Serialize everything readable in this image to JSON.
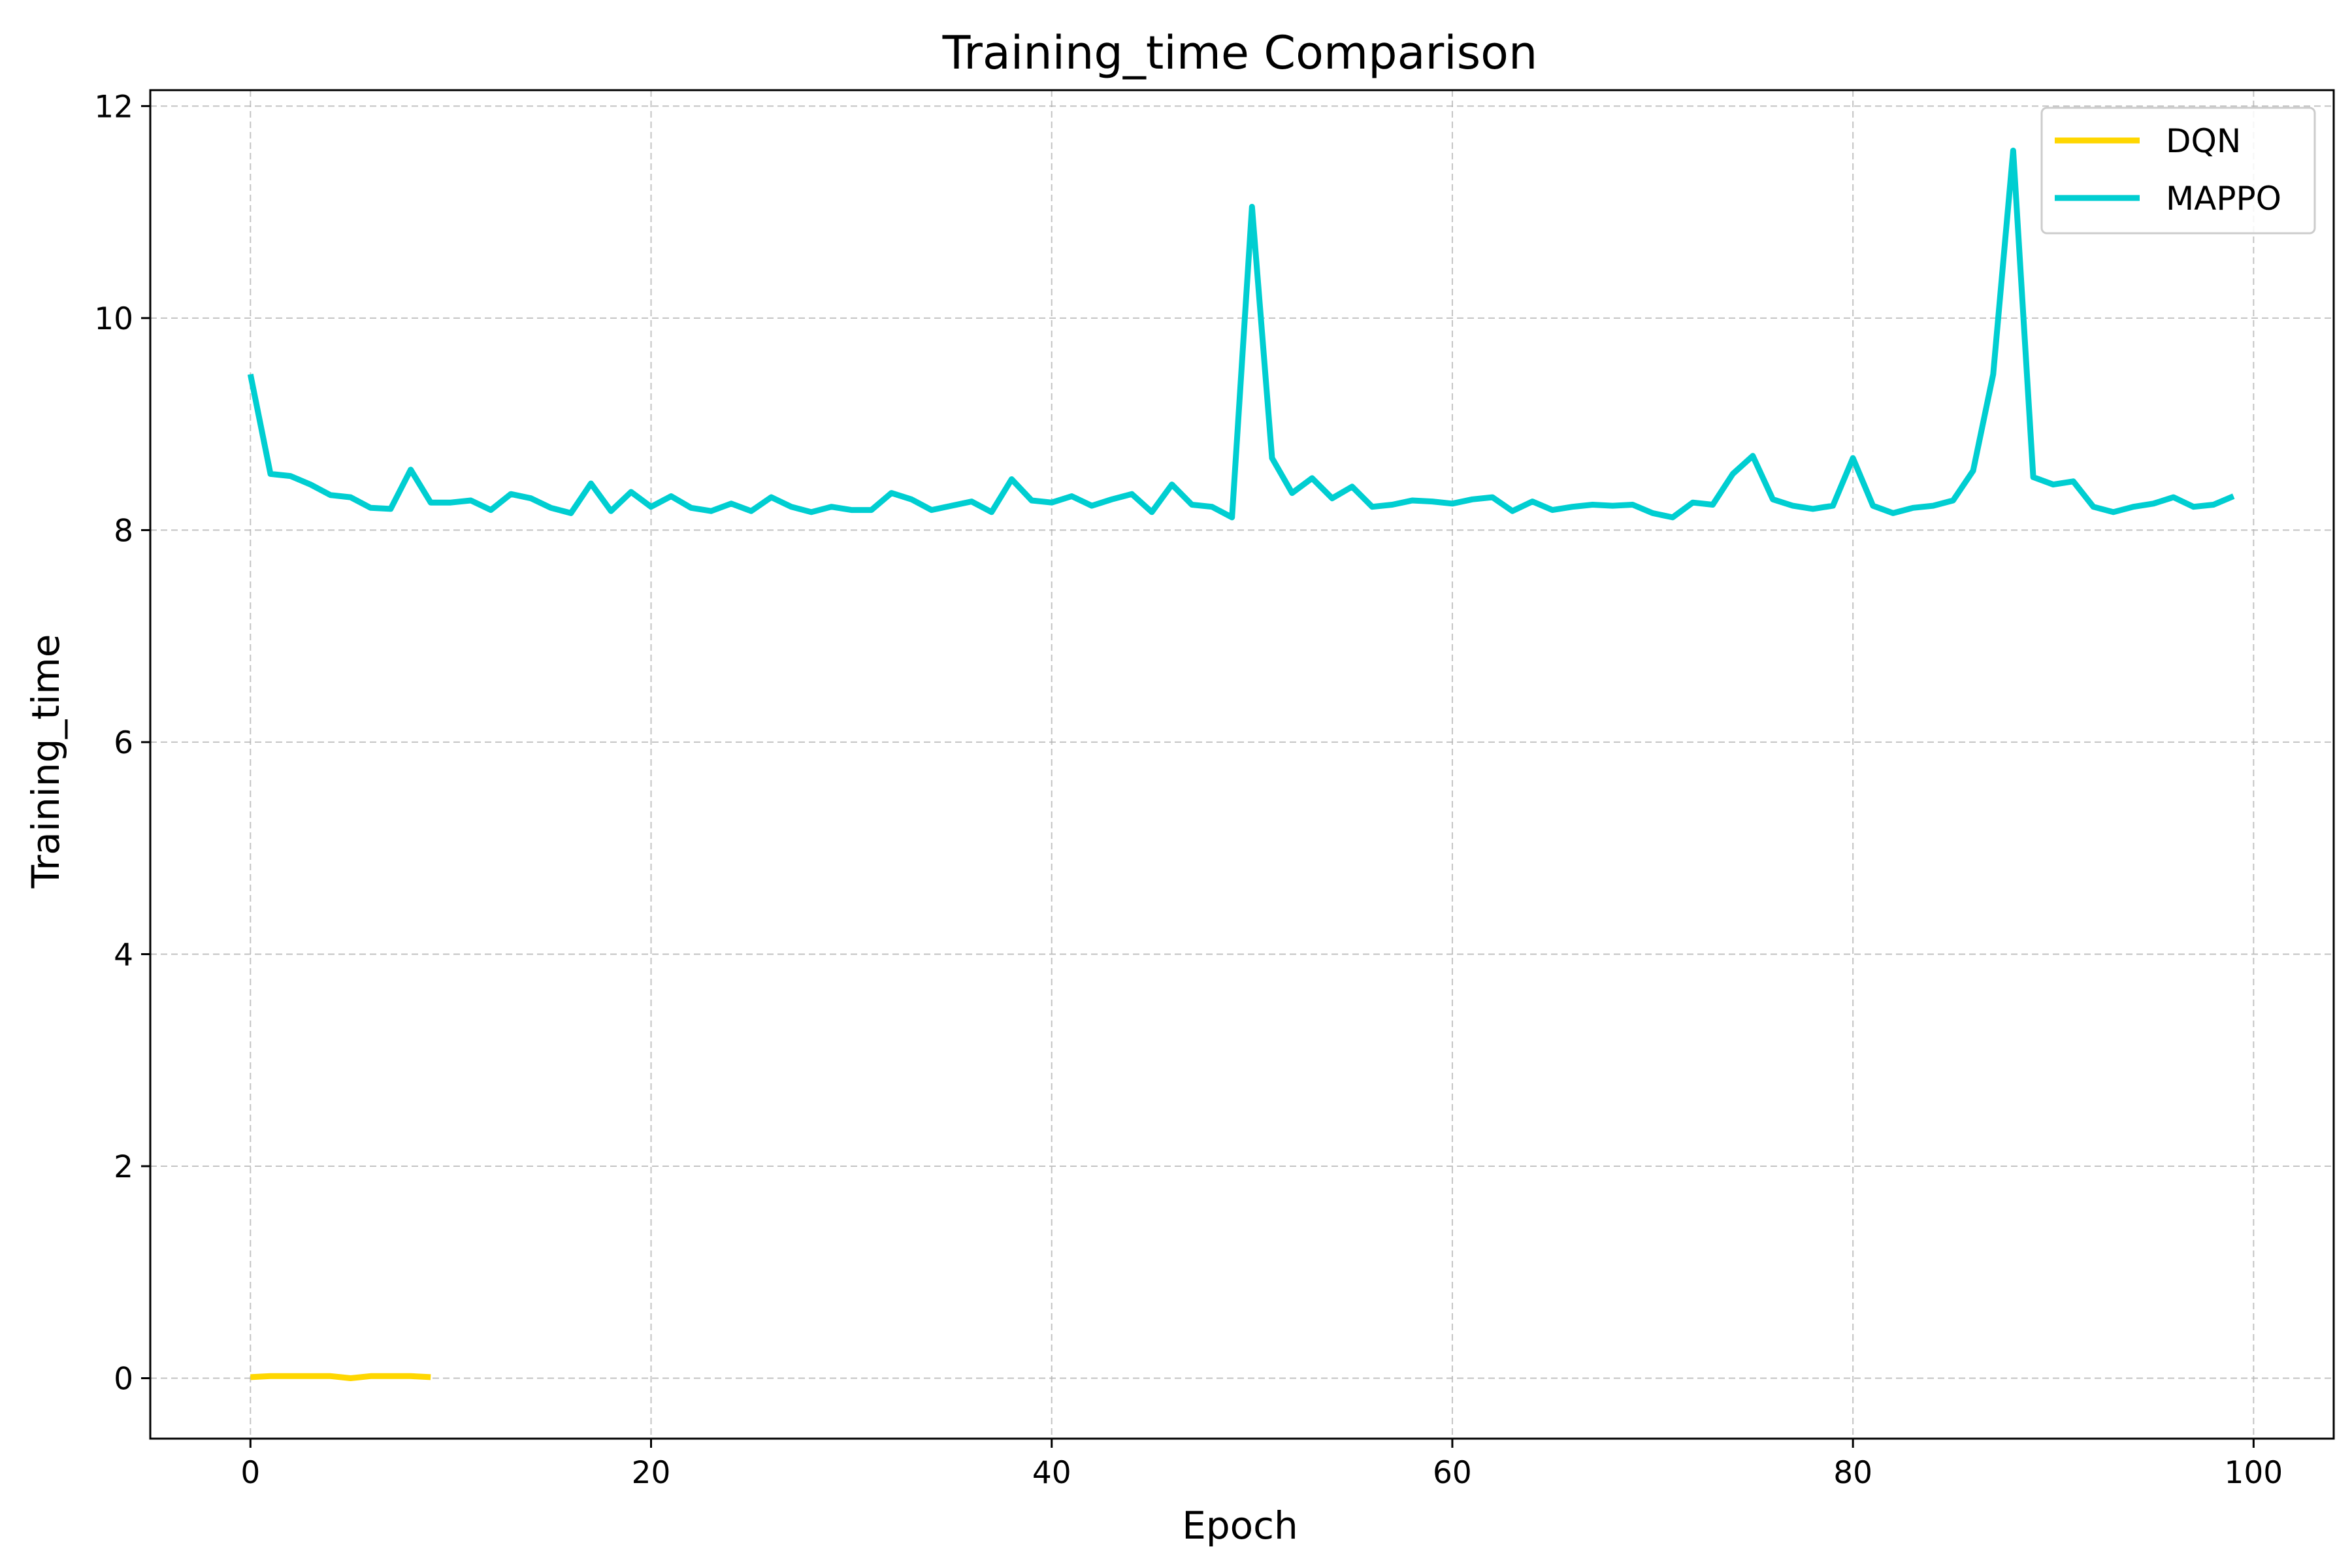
{
  "chart_data": {
    "type": "line",
    "title": "Training_time Comparison",
    "xlabel": "Epoch",
    "ylabel": "Training_time",
    "xlim": [
      -5,
      104
    ],
    "ylim": [
      -0.57,
      12.15
    ],
    "x_ticks": [
      0,
      20,
      40,
      60,
      80,
      100
    ],
    "y_ticks": [
      0,
      2,
      4,
      6,
      8,
      10,
      12
    ],
    "grid": true,
    "legend_position": "top-right",
    "series": [
      {
        "name": "DQN",
        "color": "#FFD700",
        "x": [
          0,
          1,
          2,
          3,
          4,
          5,
          6,
          7,
          8,
          9
        ],
        "values": [
          0.01,
          0.02,
          0.02,
          0.02,
          0.02,
          0.0,
          0.02,
          0.02,
          0.02,
          0.01
        ]
      },
      {
        "name": "MAPPO",
        "color": "#00CED1",
        "x": [
          0,
          1,
          2,
          3,
          4,
          5,
          6,
          7,
          8,
          9,
          10,
          11,
          12,
          13,
          14,
          15,
          16,
          17,
          18,
          19,
          20,
          21,
          22,
          23,
          24,
          25,
          26,
          27,
          28,
          29,
          30,
          31,
          32,
          33,
          34,
          35,
          36,
          37,
          38,
          39,
          40,
          41,
          42,
          43,
          44,
          45,
          46,
          47,
          48,
          49,
          50,
          51,
          52,
          53,
          54,
          55,
          56,
          57,
          58,
          59,
          60,
          61,
          62,
          63,
          64,
          65,
          66,
          67,
          68,
          69,
          70,
          71,
          72,
          73,
          74,
          75,
          76,
          77,
          78,
          79,
          80,
          81,
          82,
          83,
          84,
          85,
          86,
          87,
          88,
          89,
          90,
          91,
          92,
          93,
          94,
          95,
          96,
          97,
          98,
          99
        ],
        "values": [
          9.47,
          8.53,
          8.51,
          8.43,
          8.33,
          8.31,
          8.21,
          8.2,
          8.57,
          8.26,
          8.26,
          8.28,
          8.19,
          8.34,
          8.3,
          8.21,
          8.16,
          8.44,
          8.18,
          8.36,
          8.22,
          8.32,
          8.21,
          8.18,
          8.25,
          8.18,
          8.31,
          8.22,
          8.17,
          8.22,
          8.19,
          8.19,
          8.35,
          8.29,
          8.19,
          8.23,
          8.27,
          8.17,
          8.48,
          8.28,
          8.26,
          8.32,
          8.23,
          8.29,
          8.34,
          8.17,
          8.43,
          8.24,
          8.22,
          8.12,
          11.05,
          8.68,
          8.35,
          8.49,
          8.3,
          8.41,
          8.22,
          8.24,
          8.28,
          8.27,
          8.25,
          8.29,
          8.31,
          8.18,
          8.27,
          8.19,
          8.22,
          8.24,
          8.23,
          8.24,
          8.16,
          8.12,
          8.26,
          8.24,
          8.53,
          8.7,
          8.29,
          8.23,
          8.2,
          8.23,
          8.68,
          8.23,
          8.16,
          8.21,
          8.23,
          8.28,
          8.56,
          9.47,
          11.58,
          8.5,
          8.43,
          8.46,
          8.22,
          8.17,
          8.22,
          8.25,
          8.31,
          8.22,
          8.24,
          8.32
        ]
      }
    ]
  }
}
